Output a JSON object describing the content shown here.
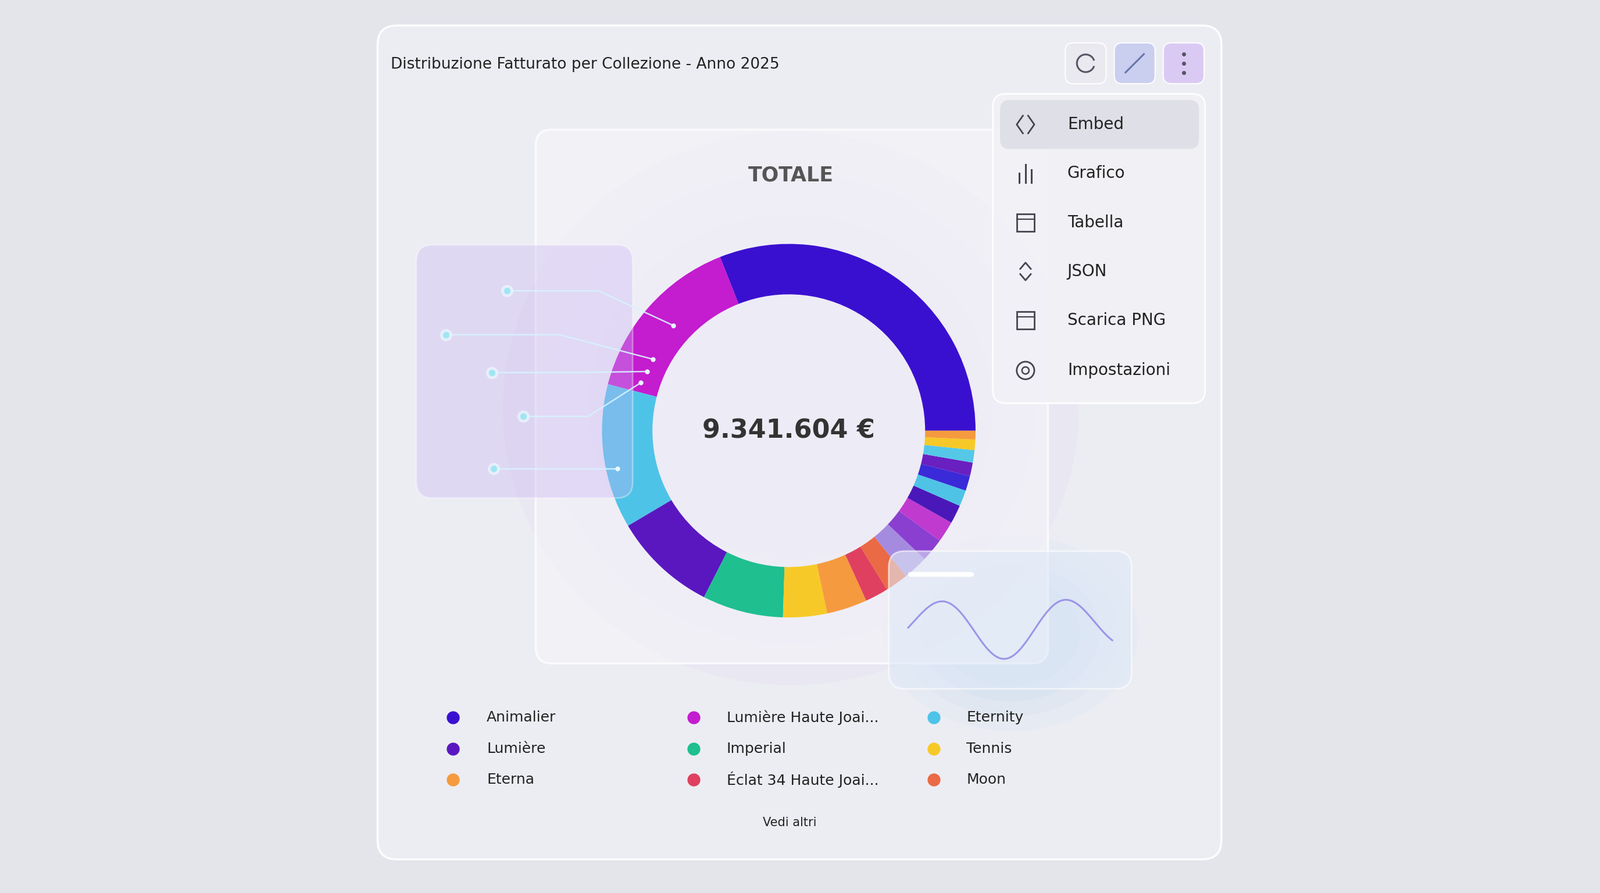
{
  "chart_data": {
    "type": "donut",
    "title": "Distribuzione Fatturato per Collezione - Anno 2025",
    "categories": [
      "Animalier",
      "Lumière Haute Joai...",
      "Eternity",
      "Lumière",
      "Imperial",
      "Tennis",
      "Eterna",
      "Éclat 34 Haute Joai...",
      "Moon",
      null,
      null,
      null,
      null,
      null,
      null,
      null,
      null,
      null,
      null
    ],
    "values": [
      2896000,
      1401000,
      1168000,
      841000,
      654000,
      355000,
      327000,
      187000,
      187000,
      200000,
      190000,
      170000,
      150000,
      130000,
      120000,
      110000,
      100000,
      85000,
      70604
    ],
    "colors": [
      "#3a10d0",
      "#c41ccf",
      "#4ec3e8",
      "#5a17c0",
      "#1fbf8f",
      "#f7c928",
      "#f59a3e",
      "#e0405f",
      "#ea6a45",
      "#a58be0",
      "#8a3fd0",
      "#c13ad0",
      "#4a18b8",
      "#4fc3e6",
      "#3a2ad8",
      "#6a1fc0",
      "#55c8e8",
      "#f7c928",
      "#f59a3e"
    ],
    "legend": "bottom",
    "annotations": [
      "TOTALE",
      "9.341.604 €"
    ]
  },
  "menu": [
    "Embed",
    "Grafico",
    "Tabella",
    "JSON",
    "Scarica PNG",
    "Impostazioni"
  ],
  "more_link": "Vedi altri"
}
